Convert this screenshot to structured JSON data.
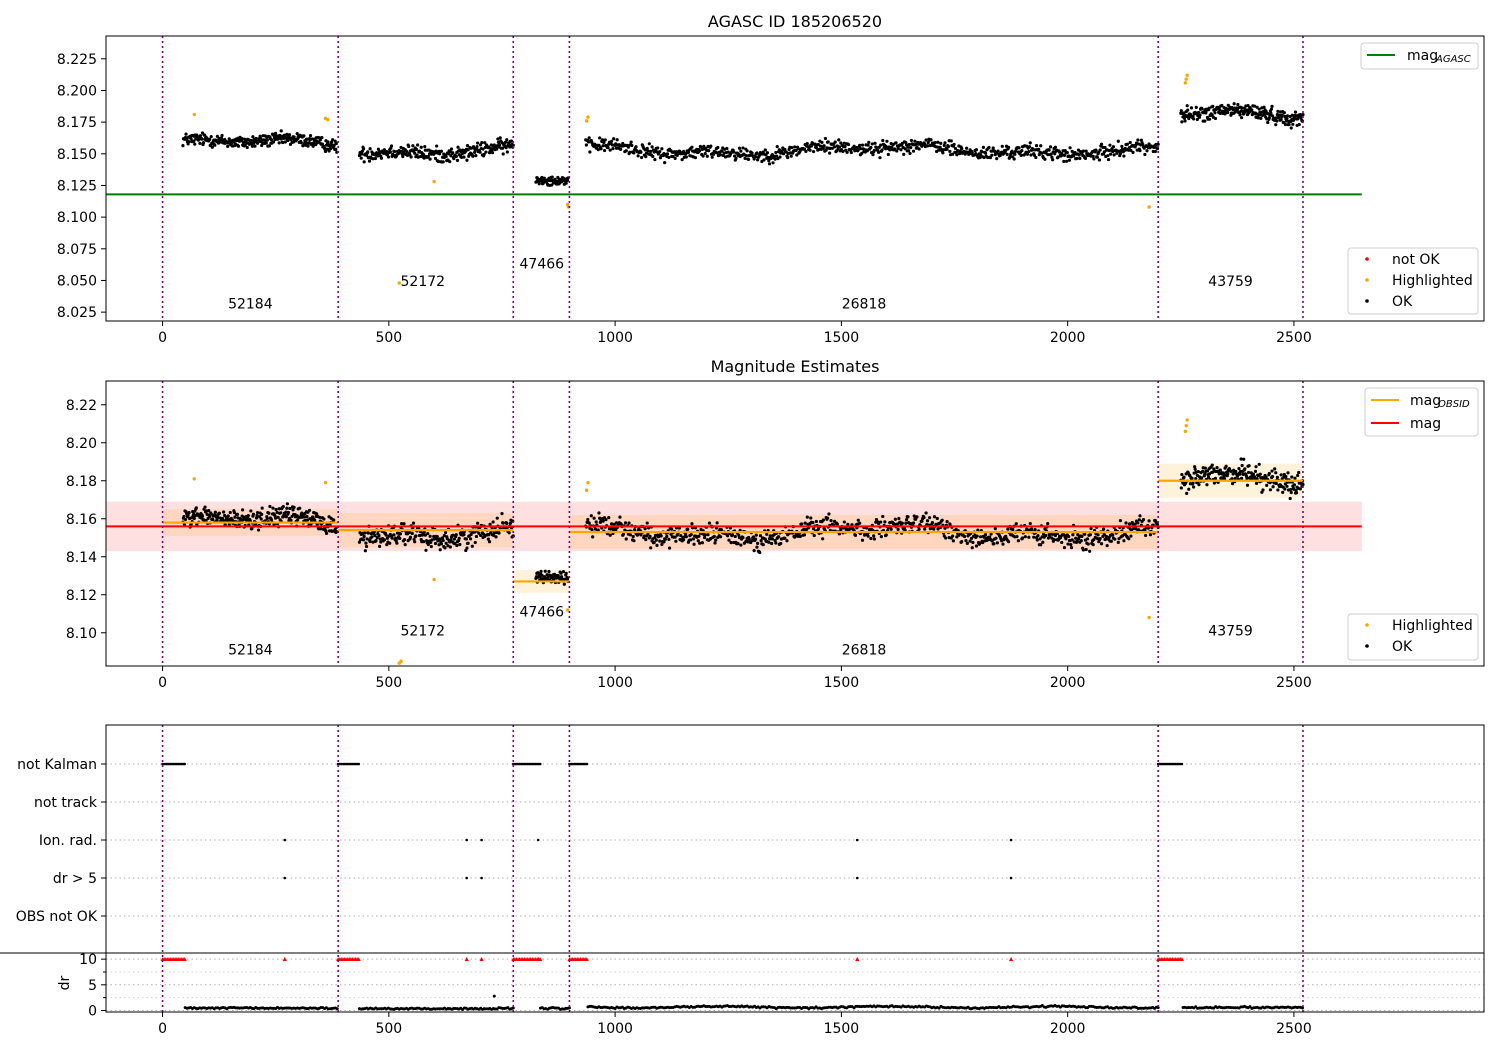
{
  "chart_data": [
    {
      "type": "scatter",
      "title": "AGASC ID 185206520",
      "xlim": [
        -125,
        2920
      ],
      "ylim": [
        8.018,
        8.243
      ],
      "x_ticks": [
        0,
        500,
        1000,
        1500,
        2000,
        2500
      ],
      "y_ticks": [
        8.025,
        8.05,
        8.075,
        8.1,
        8.125,
        8.15,
        8.175,
        8.2,
        8.225
      ],
      "obsid_boundaries": [
        0,
        388,
        775,
        899,
        2200,
        2520
      ],
      "obsid_labels": [
        {
          "text": "52184",
          "x": 194,
          "y": 8.028
        },
        {
          "text": "52172",
          "x": 575,
          "y": 8.0455
        },
        {
          "text": "47466",
          "x": 838,
          "y": 8.0595
        },
        {
          "text": "26818",
          "x": 1550,
          "y": 8.028
        },
        {
          "text": "43759",
          "x": 2360,
          "y": 8.0455
        }
      ],
      "mag_agasc": {
        "value": 8.118,
        "x_range": [
          -125,
          2650
        ],
        "color": "#008000"
      },
      "ok_segments": [
        {
          "x0": 45,
          "x1": 385,
          "mean": 8.158,
          "spread": 0.0065,
          "n": 300
        },
        {
          "x0": 435,
          "x1": 775,
          "mean": 8.153,
          "spread": 0.0075,
          "n": 260
        },
        {
          "x0": 825,
          "x1": 896,
          "mean": 8.128,
          "spread": 0.0045,
          "n": 70
        },
        {
          "x0": 935,
          "x1": 2200,
          "mean": 8.153,
          "spread": 0.007,
          "n": 820
        },
        {
          "x0": 2250,
          "x1": 2520,
          "mean": 8.18,
          "spread": 0.0075,
          "n": 230
        }
      ],
      "highlighted_points": [
        {
          "x": 70,
          "y": 8.181
        },
        {
          "x": 360,
          "y": 8.178
        },
        {
          "x": 365,
          "y": 8.177
        },
        {
          "x": 523,
          "y": 8.048
        },
        {
          "x": 600,
          "y": 8.128
        },
        {
          "x": 895,
          "y": 8.11
        },
        {
          "x": 897,
          "y": 8.108
        },
        {
          "x": 937,
          "y": 8.176
        },
        {
          "x": 940,
          "y": 8.179
        },
        {
          "x": 2180,
          "y": 8.108
        },
        {
          "x": 2260,
          "y": 8.206
        },
        {
          "x": 2262,
          "y": 8.209
        },
        {
          "x": 2264,
          "y": 8.212
        }
      ],
      "legend_top": [
        {
          "label": "mag",
          "sub": "AGASC",
          "color": "#008000"
        }
      ],
      "legend_bottom": [
        {
          "label": "not OK",
          "color": "#ff0000"
        },
        {
          "label": "Highlighted",
          "color": "#ffa500"
        },
        {
          "label": "OK",
          "color": "#000000"
        }
      ]
    },
    {
      "type": "scatter",
      "title": "Magnitude Estimates",
      "xlim": [
        -125,
        2920
      ],
      "ylim": [
        8.0825,
        8.2325
      ],
      "x_ticks": [
        0,
        500,
        1000,
        1500,
        2000,
        2500
      ],
      "y_ticks": [
        8.1,
        8.12,
        8.14,
        8.16,
        8.18,
        8.2,
        8.22
      ],
      "obsid_boundaries": [
        0,
        388,
        775,
        899,
        2200,
        2520
      ],
      "obsid_labels": [
        {
          "text": "52184",
          "x": 194,
          "y": 8.0885
        },
        {
          "text": "52172",
          "x": 575,
          "y": 8.0985
        },
        {
          "text": "47466",
          "x": 838,
          "y": 8.1085
        },
        {
          "text": "26818",
          "x": 1550,
          "y": 8.0885
        },
        {
          "text": "43759",
          "x": 2360,
          "y": 8.0985
        }
      ],
      "mag": {
        "value": 8.156,
        "band": [
          8.143,
          8.169
        ],
        "x_range": [
          -125,
          2650
        ],
        "color": "#ff0000"
      },
      "mag_obsid": [
        {
          "x0": 0,
          "x1": 388,
          "value": 8.158,
          "band": [
            8.151,
            8.165
          ]
        },
        {
          "x0": 388,
          "x1": 775,
          "value": 8.154,
          "band": [
            8.145,
            8.163
          ]
        },
        {
          "x0": 775,
          "x1": 899,
          "value": 8.127,
          "band": [
            8.121,
            8.133
          ]
        },
        {
          "x0": 899,
          "x1": 2200,
          "value": 8.153,
          "band": [
            8.144,
            8.162
          ]
        },
        {
          "x0": 2200,
          "x1": 2520,
          "value": 8.18,
          "band": [
            8.171,
            8.189
          ]
        }
      ],
      "highlighted_points": [
        {
          "x": 70,
          "y": 8.181
        },
        {
          "x": 360,
          "y": 8.179
        },
        {
          "x": 523,
          "y": 8.084
        },
        {
          "x": 527,
          "y": 8.085
        },
        {
          "x": 600,
          "y": 8.128
        },
        {
          "x": 895,
          "y": 8.112
        },
        {
          "x": 937,
          "y": 8.175
        },
        {
          "x": 940,
          "y": 8.179
        },
        {
          "x": 2180,
          "y": 8.108
        },
        {
          "x": 2260,
          "y": 8.206
        },
        {
          "x": 2262,
          "y": 8.209
        },
        {
          "x": 2264,
          "y": 8.212
        }
      ],
      "legend_top": [
        {
          "label": "mag",
          "sub": "OBSID",
          "color": "#ffa500"
        },
        {
          "label": "mag",
          "sub": "",
          "color": "#ff0000"
        }
      ],
      "legend_bottom": [
        {
          "label": "Highlighted",
          "color": "#ffa500"
        },
        {
          "label": "OK",
          "color": "#000000"
        }
      ]
    },
    {
      "type": "scatter",
      "xlim": [
        -125,
        2920
      ],
      "x_ticks": [
        0,
        500,
        1000,
        1500,
        2000,
        2500
      ],
      "flag_rows": [
        "not Kalman",
        "not track",
        "Ion. rad.",
        "dr > 5",
        "OBS not OK"
      ],
      "obsid_boundaries": [
        0,
        388,
        775,
        899,
        2200,
        2520
      ],
      "not_kalman_ranges": [
        [
          0,
          50
        ],
        [
          388,
          435
        ],
        [
          775,
          835
        ],
        [
          899,
          940
        ],
        [
          2200,
          2255
        ]
      ],
      "ion_rad_x": [
        270,
        672,
        705,
        830,
        1535,
        1875
      ],
      "dr_gt5_x": [
        270,
        672,
        705,
        1535,
        1875
      ],
      "dr": {
        "ylabel": "dr",
        "ylim": [
          -0.3,
          11.2
        ],
        "y_ticks": [
          0,
          5,
          10
        ],
        "clipped_value": 10,
        "outliers": [
          {
            "x": 733,
            "y": 2.8
          }
        ],
        "segments": [
          {
            "x0": 50,
            "x1": 388,
            "level": 0.45
          },
          {
            "x0": 435,
            "x1": 775,
            "level": 0.35
          },
          {
            "x0": 835,
            "x1": 899,
            "level": 0.4
          },
          {
            "x0": 940,
            "x1": 2200,
            "level": 0.65
          },
          {
            "x0": 2255,
            "x1": 2520,
            "level": 0.6
          }
        ]
      }
    }
  ]
}
